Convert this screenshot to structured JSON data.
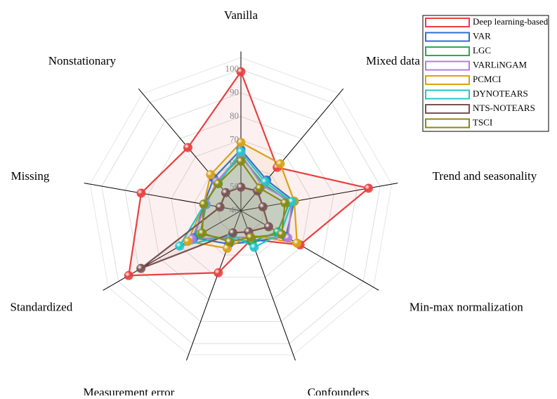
{
  "chart_data": {
    "type": "radar",
    "categories": [
      "Vanilla",
      "Mixed data",
      "Trend and seasonality",
      "Min-max normalization",
      "Confounders",
      "Measurement error",
      "Standardized",
      "Missing",
      "Nonstationary"
    ],
    "ylim": [
      40,
      105
    ],
    "yticks": [
      40,
      50,
      60,
      70,
      80,
      90,
      100
    ],
    "grid": true,
    "legend": "upper right",
    "series": [
      {
        "name": "Deep learning-based",
        "color": "#e84040",
        "values": [
          99,
          64,
          95,
          69,
          53,
          68,
          95,
          83,
          75
        ]
      },
      {
        "name": "VAR",
        "color": "#2e6fd0",
        "values": [
          66,
          57,
          63,
          62,
          54,
          55,
          63,
          56,
          58
        ]
      },
      {
        "name": "LGC",
        "color": "#2fa85a",
        "values": [
          63,
          55,
          61,
          58,
          54,
          53,
          60,
          55,
          56
        ]
      },
      {
        "name": "VARLiNGAM",
        "color": "#b07ee0",
        "values": [
          64,
          54,
          62,
          63,
          52,
          52,
          64,
          55,
          56
        ]
      },
      {
        "name": "PCMCI",
        "color": "#d9a11a",
        "values": [
          69,
          66,
          63,
          67.5,
          51,
          57,
          66,
          56,
          60
        ]
      },
      {
        "name": "DYNOTEARS",
        "color": "#22c6c9",
        "values": [
          65,
          56,
          62,
          59.5,
          56.5,
          51,
          70,
          55.7,
          55
        ]
      },
      {
        "name": "NTS-NOTEARS",
        "color": "#7a5252",
        "values": [
          50,
          51,
          49.5,
          53.6,
          49.5,
          50,
          89,
          49,
          50
        ]
      },
      {
        "name": "TSCI",
        "color": "#8a8a10",
        "values": [
          61,
          52.5,
          59,
          60,
          52,
          54,
          59,
          56,
          55
        ]
      }
    ]
  }
}
